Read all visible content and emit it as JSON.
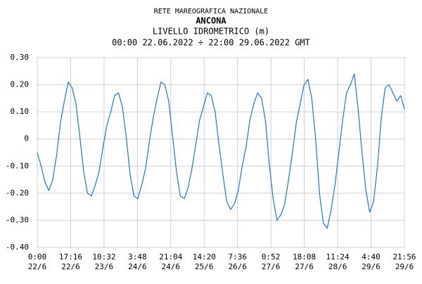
{
  "chart_data": {
    "type": "line",
    "title": "RETE MAREOGRAFICA NAZIONALE",
    "station": "ANCONA",
    "subtitle": "LIVELLO IDROMETRICO (m)",
    "period": "00:00 22.06.2022 ÷ 22:00 29.06.2022 GMT",
    "x": [
      0,
      2,
      4,
      6,
      8,
      10,
      12,
      14,
      16,
      18,
      20,
      22,
      24,
      26,
      28,
      30,
      32,
      34,
      36,
      38,
      40,
      42,
      44,
      46,
      48,
      50,
      52,
      54,
      56,
      58,
      60,
      62,
      64,
      66,
      68,
      70,
      72,
      74,
      76,
      78,
      80,
      82,
      84,
      86,
      88,
      90,
      92,
      94,
      96,
      98,
      100,
      102,
      104,
      106,
      108,
      110,
      112,
      114,
      116,
      118,
      120,
      122,
      124,
      126,
      128,
      130,
      132,
      134,
      136,
      138,
      140,
      142,
      144,
      146,
      148,
      150,
      152,
      154,
      156,
      158,
      160,
      162,
      164,
      166,
      168,
      170,
      172,
      174,
      176,
      178,
      180,
      182,
      184,
      186,
      188,
      190
    ],
    "series": [
      {
        "name": "ANCONA",
        "color": "#1f74d6",
        "values": [
          -0.05,
          -0.1,
          -0.16,
          -0.19,
          -0.15,
          -0.06,
          0.06,
          0.14,
          0.21,
          0.19,
          0.13,
          0.01,
          -0.12,
          -0.2,
          -0.21,
          -0.17,
          -0.12,
          -0.03,
          0.05,
          0.1,
          0.16,
          0.17,
          0.12,
          0.01,
          -0.13,
          -0.21,
          -0.22,
          -0.17,
          -0.11,
          -0.01,
          0.08,
          0.15,
          0.21,
          0.2,
          0.14,
          0.01,
          -0.12,
          -0.21,
          -0.22,
          -0.18,
          -0.11,
          -0.02,
          0.07,
          0.12,
          0.17,
          0.16,
          0.1,
          -0.02,
          -0.13,
          -0.23,
          -0.26,
          -0.24,
          -0.19,
          -0.1,
          -0.03,
          0.07,
          0.13,
          0.17,
          0.15,
          0.07,
          -0.09,
          -0.22,
          -0.3,
          -0.28,
          -0.24,
          -0.15,
          -0.05,
          0.06,
          0.13,
          0.2,
          0.22,
          0.15,
          0.0,
          -0.2,
          -0.31,
          -0.33,
          -0.26,
          -0.17,
          -0.05,
          0.07,
          0.17,
          0.2,
          0.24,
          0.11,
          -0.05,
          -0.19,
          -0.27,
          -0.23,
          -0.1,
          0.08,
          0.19,
          0.2,
          0.17,
          0.14,
          0.16,
          0.11
        ]
      }
    ],
    "xlim": [
      0,
      189.933
    ],
    "xticks": [
      {
        "value": 0,
        "label": [
          "0:00",
          "22/6"
        ]
      },
      {
        "value": 17.267,
        "label": [
          "17:16",
          "22/6"
        ]
      },
      {
        "value": 34.533,
        "label": [
          "10:32",
          "23/6"
        ]
      },
      {
        "value": 51.8,
        "label": [
          "3:48",
          "24/6"
        ]
      },
      {
        "value": 69.067,
        "label": [
          "21:04",
          "24/6"
        ]
      },
      {
        "value": 86.333,
        "label": [
          "14:20",
          "25/6"
        ]
      },
      {
        "value": 103.6,
        "label": [
          "7:36",
          "26/6"
        ]
      },
      {
        "value": 120.867,
        "label": [
          "0:52",
          "27/6"
        ]
      },
      {
        "value": 138.133,
        "label": [
          "18:08",
          "27/6"
        ]
      },
      {
        "value": 155.4,
        "label": [
          "11:24",
          "28/6"
        ]
      },
      {
        "value": 172.667,
        "label": [
          "4:40",
          "29/6"
        ]
      },
      {
        "value": 189.933,
        "label": [
          "21:56",
          "29/6"
        ]
      }
    ],
    "ylim": [
      -0.4,
      0.3
    ],
    "yticks": [
      {
        "value": 0.3,
        "label": "0.30"
      },
      {
        "value": 0.2,
        "label": "0.20"
      },
      {
        "value": 0.1,
        "label": "0.10"
      },
      0,
      {
        "value": -0.1,
        "label": "-0.10"
      },
      {
        "value": -0.2,
        "label": "-0.20"
      },
      {
        "value": -0.3,
        "label": "-0.30"
      },
      {
        "value": -0.4,
        "label": "-0.40"
      }
    ],
    "grid": true
  }
}
